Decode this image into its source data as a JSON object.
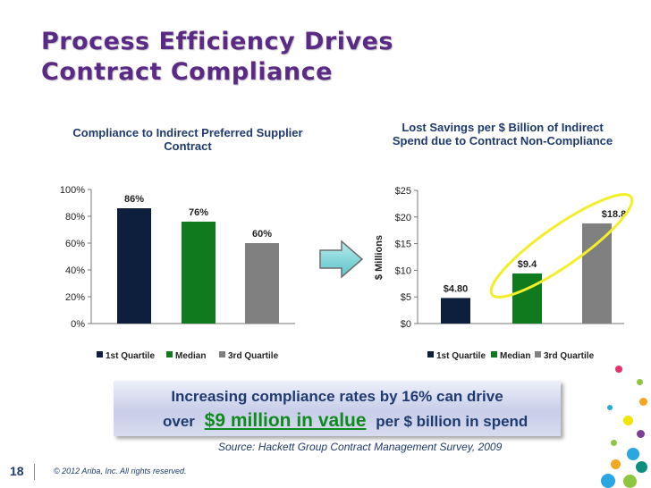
{
  "slide": {
    "title_line1": "Process Efficiency Drives",
    "title_line2": "Contract Compliance",
    "callout": {
      "line1": "Increasing compliance rates by 16% can drive",
      "line2_pre": "over",
      "line2_highlight": "$9 million in value",
      "line2_post": "per $ billion in spend"
    },
    "source": "Source: Hackett Group Contract Management Survey, 2009",
    "page_number": "18",
    "copyright": "© 2012 Ariba, Inc. All rights reserved."
  },
  "colors": {
    "title": "#5a2a86",
    "text": "#1f3a6e",
    "highlight": "#0f8a1e",
    "first_quartile": "#0d1f3c",
    "median": "#0f7a1e",
    "third_quartile": "#808080",
    "arrow": "#7fd3d6",
    "circle": "#f2ee2a"
  },
  "icons": {
    "arrow": "right-arrow-icon"
  },
  "chart_data": [
    {
      "type": "bar",
      "title_line1": "Compliance to Indirect Preferred Supplier",
      "title_line2": "Contract",
      "categories": [
        "1st Quartile",
        "Median",
        "3rd Quartile"
      ],
      "values": [
        86,
        76,
        60
      ],
      "data_labels": [
        "86%",
        "76%",
        "60%"
      ],
      "yticks": [
        "0%",
        "20%",
        "40%",
        "60%",
        "80%",
        "100%"
      ],
      "ylim": [
        0,
        100
      ],
      "ylabel": "",
      "legend": [
        "1st Quartile",
        "Median",
        "3rd Quartile"
      ],
      "legend_position": "bottom",
      "grid": false
    },
    {
      "type": "bar",
      "title_line1": "Lost Savings per $ Billion of Indirect",
      "title_line2": "Spend due to Contract Non-Compliance",
      "categories": [
        "1st Quartile",
        "Median",
        "3rd Quartile"
      ],
      "values": [
        4.8,
        9.4,
        18.8
      ],
      "data_labels": [
        "$4.80",
        "$9.4",
        "$18.8"
      ],
      "yticks": [
        "$0",
        "$5",
        "$10",
        "$15",
        "$20",
        "$25"
      ],
      "ylim": [
        0,
        25
      ],
      "ylabel": "$ Millions",
      "legend": [
        "1st Quartile",
        "Median",
        "3rd Quartile"
      ],
      "legend_position": "bottom",
      "grid": false
    }
  ]
}
